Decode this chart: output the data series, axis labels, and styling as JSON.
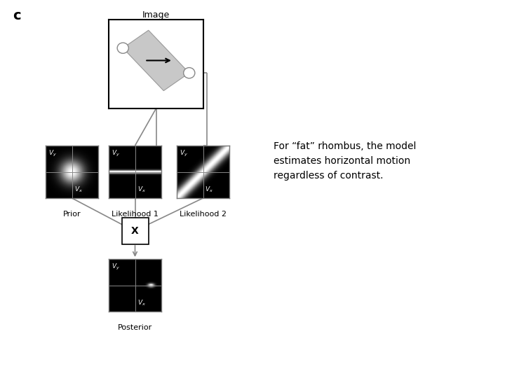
{
  "title_label": "c",
  "image_label": "Image",
  "prior_label": "Prior",
  "likelihood1_label": "Likelihood 1",
  "likelihood2_label": "Likelihood 2",
  "posterior_label": "Posterior",
  "multiply_label": "X",
  "annotation_text": "For “fat” rhombus, the model\nestimates horizontal motion\nregardless of contrast.",
  "bg_color": "#ffffff",
  "line_color": "#888888",
  "rhombus_color": "#c8c8c8"
}
